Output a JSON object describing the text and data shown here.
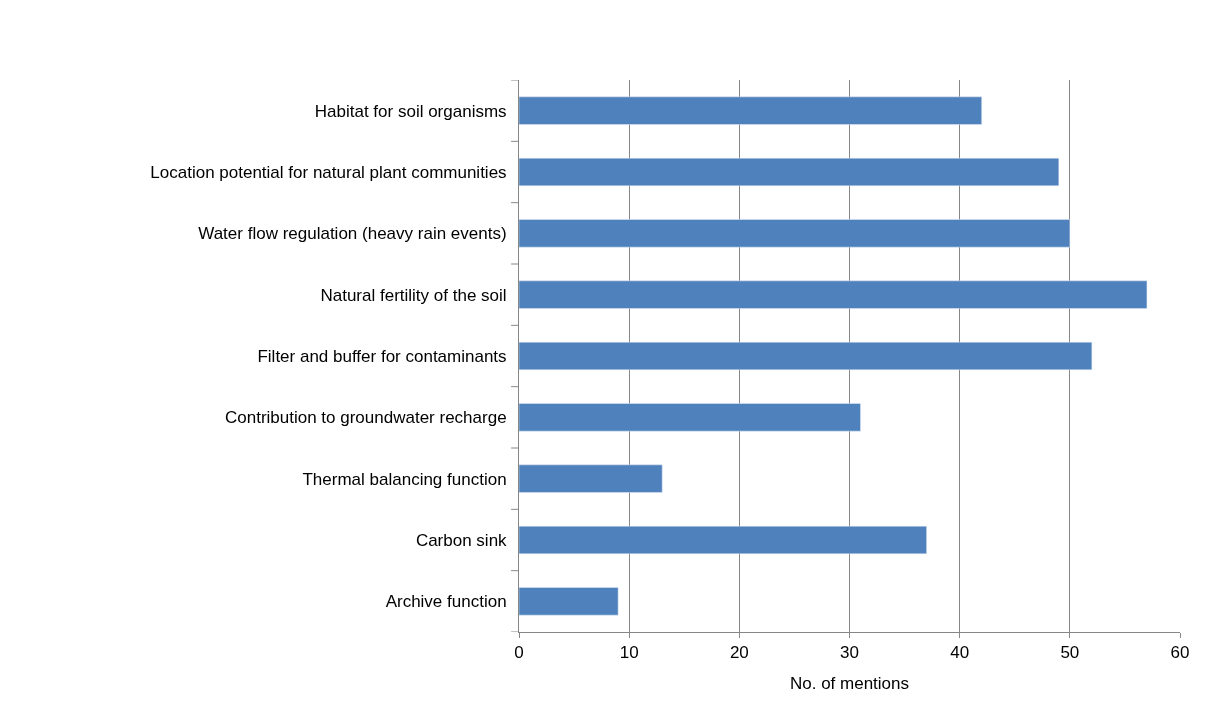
{
  "chart_data": {
    "type": "bar",
    "orientation": "horizontal",
    "xlabel": "No. of mentions",
    "categories": [
      "Habitat for soil organisms",
      "Location potential for natural plant communities",
      "Water flow regulation (heavy rain events)",
      "Natural fertility of the soil",
      "Filter and buffer for contaminants",
      "Contribution to groundwater recharge",
      "Thermal balancing function",
      "Carbon sink",
      "Archive function"
    ],
    "values": [
      42,
      49,
      50,
      57,
      52,
      31,
      13,
      37,
      9
    ],
    "color": "#4f81bd",
    "xlim": [
      0,
      60
    ],
    "xticks": [
      0,
      10,
      20,
      30,
      40,
      50,
      60
    ],
    "grid": "x"
  }
}
